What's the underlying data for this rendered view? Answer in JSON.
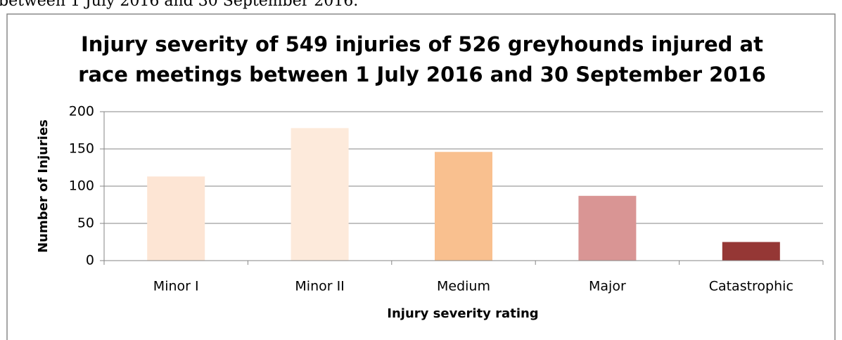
{
  "page_text": "between 1 July 2016 and 30 September 2016.",
  "chart_data": {
    "type": "bar",
    "title": "Injury severity of 549 injuries of 526 greyhounds injured at",
    "subtitle": "race meetings between 1 July 2016 and 30 September 2016",
    "x_label": "Injury severity rating",
    "y_label": "Number of Injuries",
    "categories": [
      "Minor I",
      "Minor II",
      "Medium",
      "Major",
      "Catastrophic"
    ],
    "values": [
      113,
      178,
      146,
      87,
      25
    ],
    "colors": [
      "#fde5d4",
      "#fdeadb",
      "#f9c08f",
      "#d99594",
      "#953735"
    ],
    "ylim": [
      0,
      200
    ],
    "yticks": [
      0,
      50,
      100,
      150,
      200
    ],
    "grid": true
  }
}
